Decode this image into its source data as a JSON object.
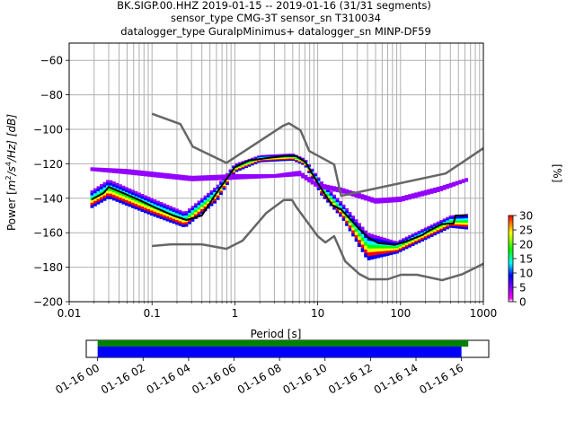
{
  "chart_data": {
    "type": "heatmap",
    "title_lines": [
      "BK.SIGP.00.HHZ   2019-01-15 -- 2019-01-16  (31/31 segments)",
      "sensor_type CMG-3T sensor_sn T310034",
      "datalogger_type GuralpMinimus+ datalogger_sn MINP-DF59"
    ],
    "xlabel": "Period [s]",
    "ylabel_parts": {
      "pre": "Power [",
      "m": "m",
      "sup2": "2",
      "s": "/s",
      "sup4": "4",
      "post": "/Hz] [dB]"
    },
    "xscale": "log",
    "xlim": [
      0.01,
      1000
    ],
    "ylim": [
      -200,
      -50
    ],
    "xticks": [
      0.01,
      0.1,
      1,
      10,
      100,
      1000
    ],
    "xtick_labels": [
      "0.01",
      "0.1",
      "1",
      "10",
      "100",
      "1000"
    ],
    "yticks": [
      -60,
      -80,
      -100,
      -120,
      -140,
      -160,
      -180,
      -200
    ],
    "ytick_labels": [
      "−60",
      "−80",
      "−100",
      "−120",
      "−140",
      "−160",
      "−180",
      "−200"
    ],
    "grid": true,
    "colorbar": {
      "label": "[%]",
      "range": [
        0,
        30
      ],
      "ticks": [
        0,
        5,
        10,
        15,
        20,
        25,
        30
      ],
      "tick_labels": [
        "0",
        "5",
        "10",
        "15",
        "20",
        "25",
        "30"
      ],
      "colormap": [
        "#ffffff",
        "#ff00ff",
        "#9400ff",
        "#0000ff",
        "#00ffff",
        "#00ff00",
        "#ffff00",
        "#ff8000",
        "#ff0000"
      ]
    },
    "series": [
      {
        "name": "NHNM",
        "color": "#666666",
        "points": [
          [
            0.1,
            -91
          ],
          [
            0.22,
            -97
          ],
          [
            0.31,
            -110
          ],
          [
            0.79,
            -119.5
          ],
          [
            3.8,
            -98
          ],
          [
            4.5,
            -96.5
          ],
          [
            6.2,
            -100.6
          ],
          [
            7.9,
            -112.6
          ],
          [
            15.8,
            -120.4
          ],
          [
            19.2,
            -138.6
          ],
          [
            351,
            -125.6
          ],
          [
            1000,
            -111
          ]
        ]
      },
      {
        "name": "NLNM",
        "color": "#666666",
        "points": [
          [
            0.1,
            -167.7
          ],
          [
            0.17,
            -166.7
          ],
          [
            0.4,
            -166.7
          ],
          [
            0.79,
            -169.3
          ],
          [
            1.24,
            -164.6
          ],
          [
            2.4,
            -148.5
          ],
          [
            3.9,
            -141
          ],
          [
            4.9,
            -141
          ],
          [
            5.5,
            -145
          ],
          [
            10,
            -162
          ],
          [
            12.4,
            -165.6
          ],
          [
            15.8,
            -162
          ],
          [
            21.5,
            -176.6
          ],
          [
            31.7,
            -183.9
          ],
          [
            42,
            -187
          ],
          [
            70,
            -187
          ],
          [
            101,
            -184.4
          ],
          [
            158,
            -184.4
          ],
          [
            318,
            -187.5
          ],
          [
            560,
            -184
          ],
          [
            1000,
            -178
          ]
        ]
      },
      {
        "name": "mean",
        "color": "#000000",
        "points": [
          [
            0.0187,
            -140.7
          ],
          [
            0.026,
            -137
          ],
          [
            0.03,
            -133.4
          ],
          [
            0.038,
            -135.5
          ],
          [
            0.07,
            -141
          ],
          [
            0.115,
            -145.9
          ],
          [
            0.18,
            -150
          ],
          [
            0.26,
            -152.6
          ],
          [
            0.4,
            -150
          ],
          [
            0.6,
            -137
          ],
          [
            1.0,
            -122
          ],
          [
            1.5,
            -118
          ],
          [
            2.6,
            -116.5
          ],
          [
            4,
            -115.5
          ],
          [
            5.5,
            -115.5
          ],
          [
            7.1,
            -119
          ],
          [
            11,
            -134.4
          ],
          [
            15,
            -144
          ],
          [
            19.2,
            -146.5
          ],
          [
            24.6,
            -152
          ],
          [
            32,
            -158
          ],
          [
            41.5,
            -163
          ],
          [
            54,
            -166
          ],
          [
            85,
            -167
          ],
          [
            110,
            -165.5
          ],
          [
            180,
            -161.5
          ],
          [
            217,
            -159
          ],
          [
            315,
            -155
          ],
          [
            438,
            -154.6
          ],
          [
            460,
            -150
          ],
          [
            640,
            -150
          ]
        ]
      }
    ],
    "heat_bands": [
      {
        "name": "main-density",
        "points_upper": [
          [
            0.018,
            -136
          ],
          [
            0.03,
            -129
          ],
          [
            0.1,
            -140
          ],
          [
            0.25,
            -148
          ],
          [
            0.6,
            -133
          ],
          [
            1,
            -120
          ],
          [
            2,
            -115
          ],
          [
            5,
            -114
          ],
          [
            7,
            -117
          ],
          [
            11,
            -130
          ],
          [
            20,
            -143
          ],
          [
            40,
            -160
          ],
          [
            90,
            -165
          ],
          [
            200,
            -157
          ],
          [
            400,
            -150
          ],
          [
            650,
            -149
          ]
        ],
        "points_lower": [
          [
            0.018,
            -146
          ],
          [
            0.03,
            -140
          ],
          [
            0.1,
            -150
          ],
          [
            0.25,
            -157
          ],
          [
            0.6,
            -142
          ],
          [
            1,
            -125
          ],
          [
            2,
            -119
          ],
          [
            5,
            -118
          ],
          [
            7,
            -121
          ],
          [
            11,
            -138
          ],
          [
            20,
            -152
          ],
          [
            40,
            -176
          ],
          [
            90,
            -172
          ],
          [
            200,
            -164
          ],
          [
            400,
            -157
          ],
          [
            650,
            -158
          ]
        ]
      },
      {
        "name": "low-density-upper",
        "points_upper": [
          [
            0.018,
            -122
          ],
          [
            0.05,
            -123
          ],
          [
            0.3,
            -127
          ],
          [
            1,
            -126
          ],
          [
            3,
            -126
          ],
          [
            6,
            -124
          ],
          [
            10,
            -131
          ],
          [
            20,
            -134
          ],
          [
            50,
            -140
          ],
          [
            100,
            -139
          ],
          [
            300,
            -133
          ],
          [
            650,
            -128
          ]
        ],
        "points_lower": [
          [
            0.018,
            -124
          ],
          [
            0.05,
            -126
          ],
          [
            0.3,
            -130
          ],
          [
            1,
            -129
          ],
          [
            3,
            -128
          ],
          [
            6,
            -127
          ],
          [
            10,
            -134
          ],
          [
            20,
            -137
          ],
          [
            50,
            -143
          ],
          [
            100,
            -142
          ],
          [
            300,
            -136
          ],
          [
            650,
            -130
          ]
        ]
      }
    ]
  },
  "timeline": {
    "tick_labels": [
      "01-16 00",
      "01-16 02",
      "01-16 04",
      "01-16 06",
      "01-16 08",
      "01-16 10",
      "01-16 12",
      "01-16 14",
      "01-16 16"
    ],
    "tick_hours": [
      0,
      2,
      4,
      6,
      8,
      10,
      12,
      14,
      16
    ],
    "range_hours": [
      -0.5,
      17.2
    ],
    "green_bar_hours": [
      0,
      16.3
    ],
    "blue_bar_hours": [
      0,
      16.0
    ],
    "green_color": "#008000",
    "blue_color": "#0000ff"
  }
}
